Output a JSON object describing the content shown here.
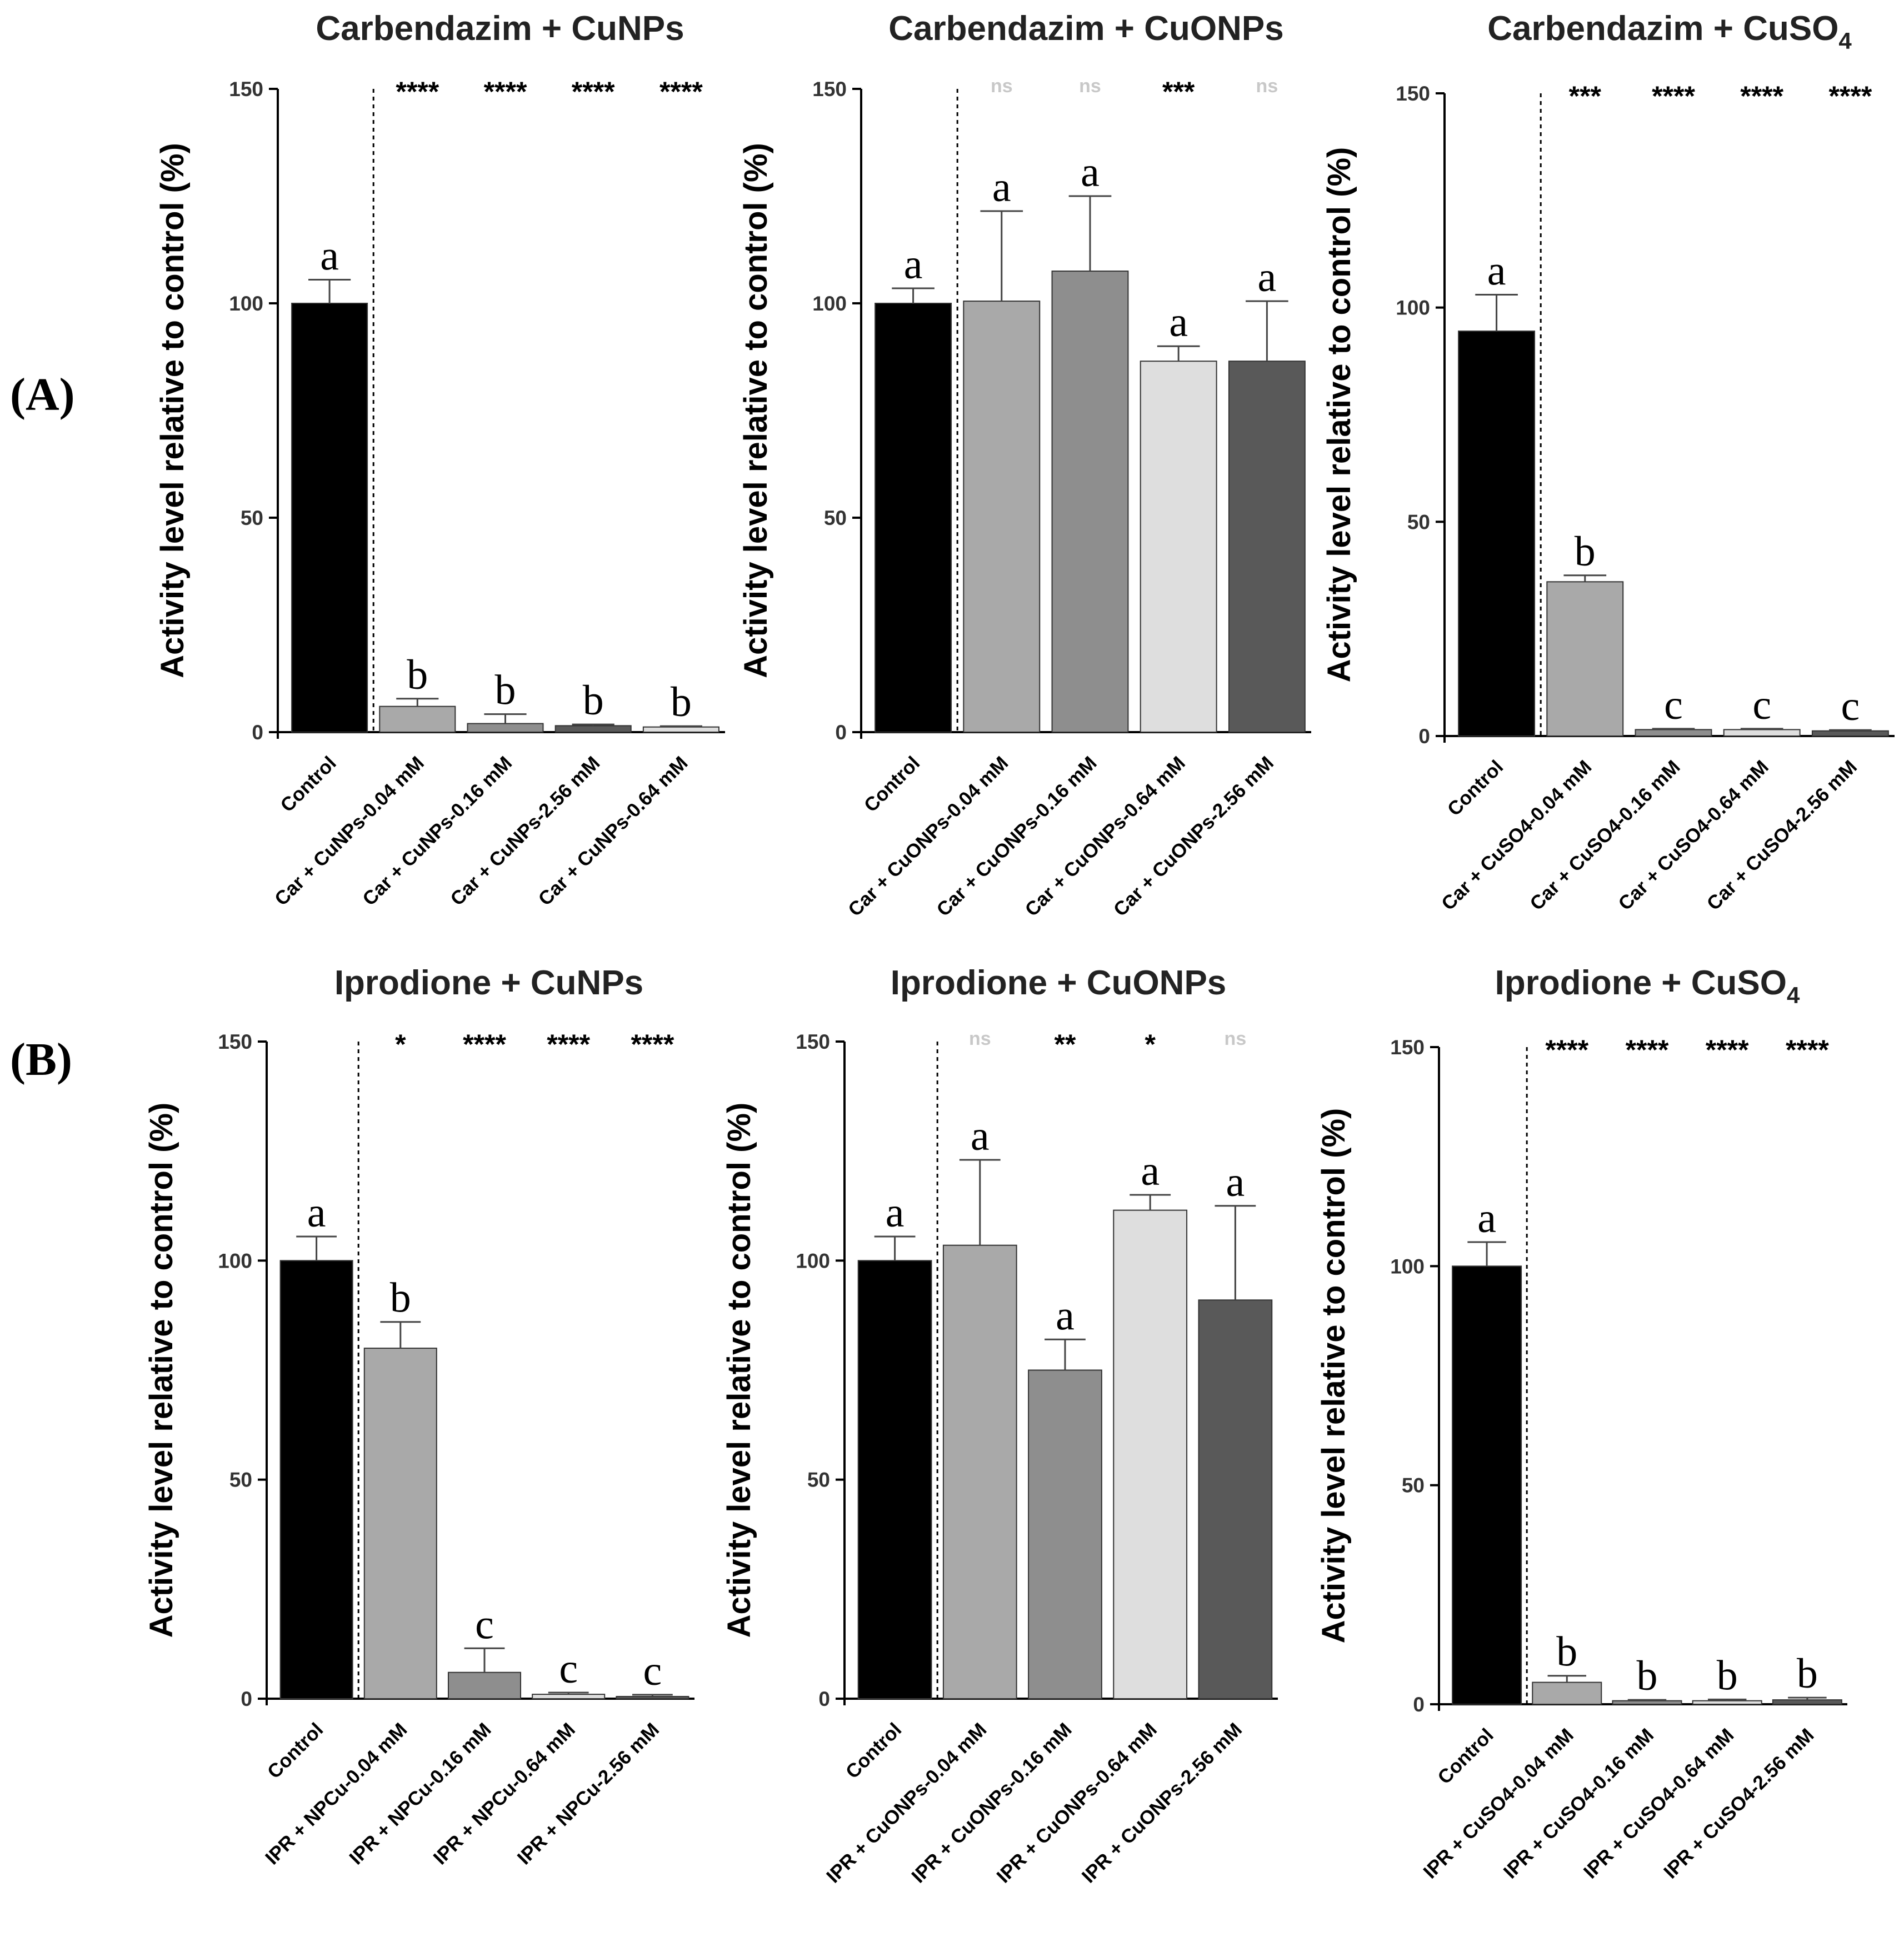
{
  "figure": {
    "row_labels": [
      "(A)",
      "(B)"
    ],
    "ylabel": "Activity level relative to control (%)"
  },
  "colors": {
    "control": "#000000",
    "light_gray": "#a9a9a9",
    "mid_gray": "#8e8e8e",
    "pale_gray": "#dedede",
    "dark_gray": "#595959",
    "ns_text": "#c8c8c8",
    "sig_text": "#000000"
  },
  "chart_data": [
    {
      "type": "bar",
      "row": "(A)",
      "title": "Carbendazim + CuNPs",
      "title_sub": "",
      "ylabel": "Activity level relative to control (%)",
      "ylim": [
        0,
        150
      ],
      "yticks": [
        0,
        50,
        100,
        150
      ],
      "categories": [
        "Control",
        "Car + CuNPs-0.04 mM",
        "Car + CuNPs-0.16 mM",
        "Car + CuNPs-2.56 mM",
        "Car + CuNPs-0.64 mM"
      ],
      "values": [
        100,
        6,
        2,
        1.5,
        1.2
      ],
      "errors": [
        5.5,
        1.8,
        2.2,
        0.3,
        0.2
      ],
      "letters": [
        "a",
        "b",
        "b",
        "b",
        "b"
      ],
      "significance": [
        "",
        "****",
        "****",
        "****",
        "****"
      ],
      "fill_keys": [
        "control",
        "light_gray",
        "mid_gray",
        "dark_gray",
        "pale_gray"
      ]
    },
    {
      "type": "bar",
      "row": "(A)",
      "title": "Carbendazim + CuONPs",
      "title_sub": "",
      "ylabel": "Activity level relative to control (%)",
      "ylim": [
        0,
        150
      ],
      "yticks": [
        0,
        50,
        100,
        150
      ],
      "categories": [
        "Control",
        "Car + CuONPs-0.04 mM",
        "Car + CuONPs-0.16 mM",
        "Car + CuONPs-0.64 mM",
        "Car + CuONPs-2.56 mM"
      ],
      "values": [
        100,
        100.5,
        107.5,
        86.5,
        86.5
      ],
      "errors": [
        3.5,
        21,
        17.5,
        3.5,
        14
      ],
      "letters": [
        "a",
        "a",
        "a",
        "a",
        "a"
      ],
      "significance": [
        "",
        "ns",
        "ns",
        "***",
        "ns"
      ],
      "fill_keys": [
        "control",
        "light_gray",
        "mid_gray",
        "pale_gray",
        "dark_gray"
      ]
    },
    {
      "type": "bar",
      "row": "(A)",
      "title": "Carbendazim + CuSO",
      "title_sub": "4",
      "ylabel": "Activity level relative to control (%)",
      "ylim": [
        0,
        150
      ],
      "yticks": [
        0,
        50,
        100,
        150
      ],
      "categories": [
        "Control",
        "Car + CuSO4-0.04 mM",
        "Car + CuSO4-0.16 mM",
        "Car + CuSO4-0.64 mM",
        "Car + CuSO4-2.56 mM"
      ],
      "values": [
        94.5,
        36,
        1.5,
        1.5,
        1.2
      ],
      "errors": [
        8.5,
        1.5,
        0.2,
        0.2,
        0.2
      ],
      "letters": [
        "a",
        "b",
        "c",
        "c",
        "c"
      ],
      "significance": [
        "",
        "***",
        "****",
        "****",
        "****"
      ],
      "fill_keys": [
        "control",
        "light_gray",
        "mid_gray",
        "pale_gray",
        "dark_gray"
      ]
    },
    {
      "type": "bar",
      "row": "(B)",
      "title": "Iprodione + CuNPs",
      "title_sub": "",
      "ylabel": "Activity level relative to control (%)",
      "ylim": [
        0,
        150
      ],
      "yticks": [
        0,
        50,
        100,
        150
      ],
      "categories": [
        "Control",
        "IPR + NPCu-0.04 mM",
        "IPR + NPCu-0.16 mM",
        "IPR + NPCu-0.64 mM",
        "IPR + NPCu-2.56 mM"
      ],
      "values": [
        100,
        80,
        6,
        1,
        0.5
      ],
      "errors": [
        5.5,
        6,
        5.5,
        0.4,
        0.4
      ],
      "letters": [
        "a",
        "b",
        "c",
        "c",
        "c"
      ],
      "significance": [
        "",
        "*",
        "****",
        "****",
        "****"
      ],
      "fill_keys": [
        "control",
        "light_gray",
        "mid_gray",
        "pale_gray",
        "dark_gray"
      ]
    },
    {
      "type": "bar",
      "row": "(B)",
      "title": "Iprodione + CuONPs",
      "title_sub": "",
      "ylabel": "Activity level relative to control (%)",
      "ylim": [
        0,
        150
      ],
      "yticks": [
        0,
        50,
        100,
        150
      ],
      "categories": [
        "Control",
        "IPR + CuONPs-0.04 mM",
        "IPR + CuONPs-0.16 mM",
        "IPR + CuONPs-0.64 mM",
        "IPR + CuONPs-2.56 mM"
      ],
      "values": [
        100,
        103.5,
        75,
        111.5,
        91
      ],
      "errors": [
        5.5,
        19.5,
        7,
        3.5,
        21.5
      ],
      "letters": [
        "a",
        "a",
        "a",
        "a",
        "a"
      ],
      "significance": [
        "",
        "ns",
        "**",
        "*",
        "ns"
      ],
      "fill_keys": [
        "control",
        "light_gray",
        "mid_gray",
        "pale_gray",
        "dark_gray"
      ]
    },
    {
      "type": "bar",
      "row": "(B)",
      "title": "Iprodione + CuSO",
      "title_sub": "4",
      "ylabel": "Activity level relative to control (%)",
      "ylim": [
        0,
        150
      ],
      "yticks": [
        0,
        50,
        100,
        150
      ],
      "categories": [
        "Control",
        "IPR + CuSO4-0.04 mM",
        "IPR + CuSO4-0.16 mM",
        "IPR + CuSO4-0.64 mM",
        "IPR + CuSO4-2.56 mM"
      ],
      "values": [
        100,
        5,
        0.8,
        0.8,
        1
      ],
      "errors": [
        5.5,
        1.5,
        0.2,
        0.3,
        0.5
      ],
      "letters": [
        "a",
        "b",
        "b",
        "b",
        "b"
      ],
      "significance": [
        "",
        "****",
        "****",
        "****",
        "****"
      ],
      "fill_keys": [
        "control",
        "light_gray",
        "mid_gray",
        "pale_gray",
        "dark_gray"
      ]
    }
  ]
}
